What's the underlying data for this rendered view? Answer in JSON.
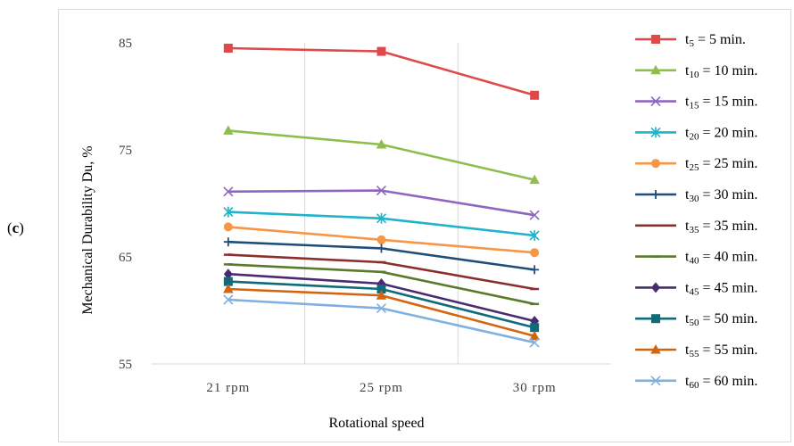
{
  "panel_label": {
    "open": "(",
    "letter": "c",
    "close": ")"
  },
  "chart_data": {
    "type": "line",
    "categories": [
      "21 rpm",
      "25 rpm",
      "30 rpm"
    ],
    "xlabel": "Rotational speed",
    "ylabel": "Mechanical Durability Du, %",
    "ylim": [
      55,
      85
    ],
    "yticks": [
      "55",
      "65",
      "75",
      "85"
    ],
    "grid": "vertical category gridlines",
    "legend_position": "right",
    "series": [
      {
        "name": "t5 = 5 min.",
        "sub": "5",
        "rest": " = 5 min.",
        "color": "#e0494a",
        "marker": "square",
        "values": [
          84.5,
          84.2,
          80.1
        ]
      },
      {
        "name": "t10 = 10 min.",
        "sub": "10",
        "rest": " = 10 min.",
        "color": "#8fbe4f",
        "marker": "triangle",
        "values": [
          76.8,
          75.5,
          72.2
        ]
      },
      {
        "name": "t15 = 15 min.",
        "sub": "15",
        "rest": " = 15 min.",
        "color": "#8e66c0",
        "marker": "x",
        "values": [
          71.1,
          71.2,
          68.9
        ]
      },
      {
        "name": "t20 = 20 min.",
        "sub": "20",
        "rest": " = 20 min.",
        "color": "#1fb3cc",
        "marker": "star",
        "values": [
          69.2,
          68.6,
          67.0
        ]
      },
      {
        "name": "t25 = 25 min.",
        "sub": "25",
        "rest": " = 25 min.",
        "color": "#f79646",
        "marker": "circle",
        "values": [
          67.8,
          66.6,
          65.4
        ]
      },
      {
        "name": "t30 = 30 min.",
        "sub": "30",
        "rest": " = 30 min.",
        "color": "#1f4e79",
        "marker": "plus",
        "values": [
          66.4,
          65.8,
          63.8
        ]
      },
      {
        "name": "t35 = 35 min.",
        "sub": "35",
        "rest": " = 35 min.",
        "color": "#8b2e2e",
        "marker": "dash",
        "values": [
          65.2,
          64.5,
          62.0
        ]
      },
      {
        "name": "t40 = 40 min.",
        "sub": "40",
        "rest": " = 40 min.",
        "color": "#5a7a2c",
        "marker": "dash",
        "values": [
          64.3,
          63.6,
          60.6
        ]
      },
      {
        "name": "t45 = 45 min.",
        "sub": "45",
        "rest": " = 45 min.",
        "color": "#4b2a72",
        "marker": "diamond",
        "values": [
          63.4,
          62.5,
          59.0
        ]
      },
      {
        "name": "t50 = 50 min.",
        "sub": "50",
        "rest": " = 50 min.",
        "color": "#0f6b78",
        "marker": "square",
        "values": [
          62.7,
          62.0,
          58.4
        ]
      },
      {
        "name": "t55 = 55 min.",
        "sub": "55",
        "rest": " = 55 min.",
        "color": "#d4650f",
        "marker": "triangle",
        "values": [
          62.0,
          61.4,
          57.6
        ]
      },
      {
        "name": "t60 = 60 min.",
        "sub": "60",
        "rest": " = 60 min.",
        "color": "#7fb0e0",
        "marker": "x",
        "values": [
          61.0,
          60.2,
          57.0
        ]
      }
    ]
  }
}
